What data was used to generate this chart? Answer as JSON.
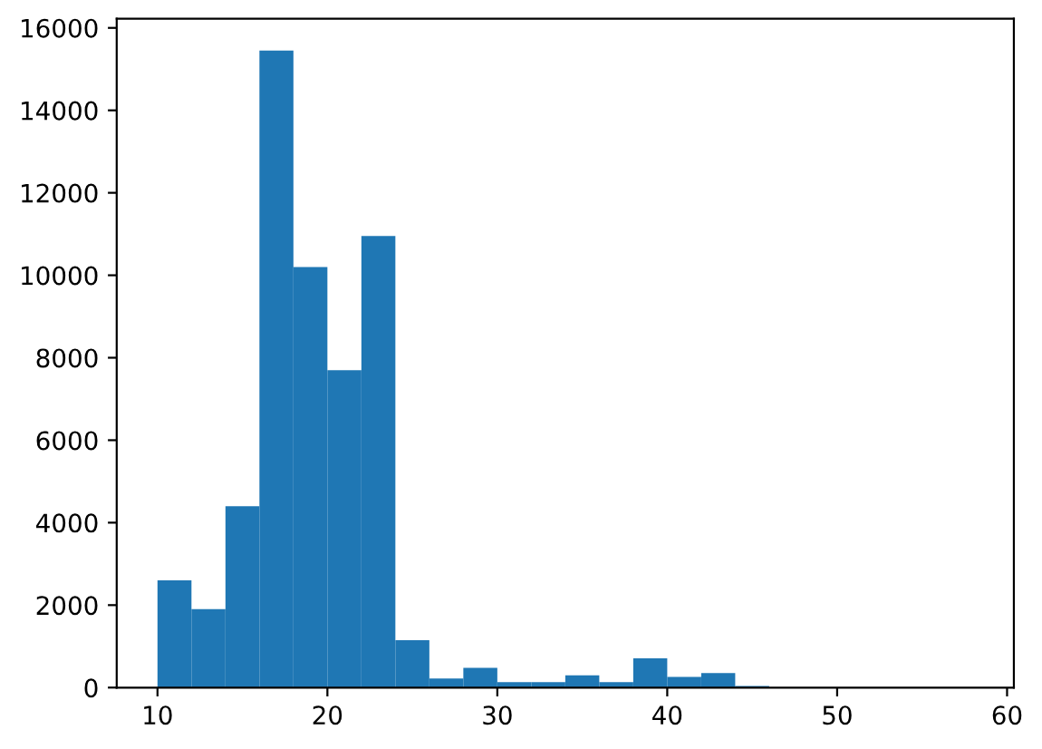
{
  "chart_data": {
    "type": "histogram",
    "bins": [
      10,
      12,
      14,
      16,
      18,
      20,
      22,
      24,
      26,
      28,
      30,
      32,
      34,
      36,
      38,
      40,
      42,
      44,
      46,
      48,
      50,
      52,
      54,
      56,
      58
    ],
    "values": [
      2600,
      1900,
      4400,
      15450,
      10200,
      7700,
      10950,
      1150,
      220,
      480,
      130,
      130,
      300,
      130,
      710,
      260,
      350,
      40,
      0,
      0,
      0,
      0,
      0,
      0
    ],
    "color": "#1f77b4",
    "xlim": [
      7.6,
      60.4
    ],
    "xticks": [
      10,
      20,
      30,
      40,
      50,
      60
    ],
    "ylim": [
      0,
      16222
    ],
    "yticks": [
      0,
      2000,
      4000,
      6000,
      8000,
      10000,
      12000,
      14000,
      16000
    ],
    "grid": false
  }
}
